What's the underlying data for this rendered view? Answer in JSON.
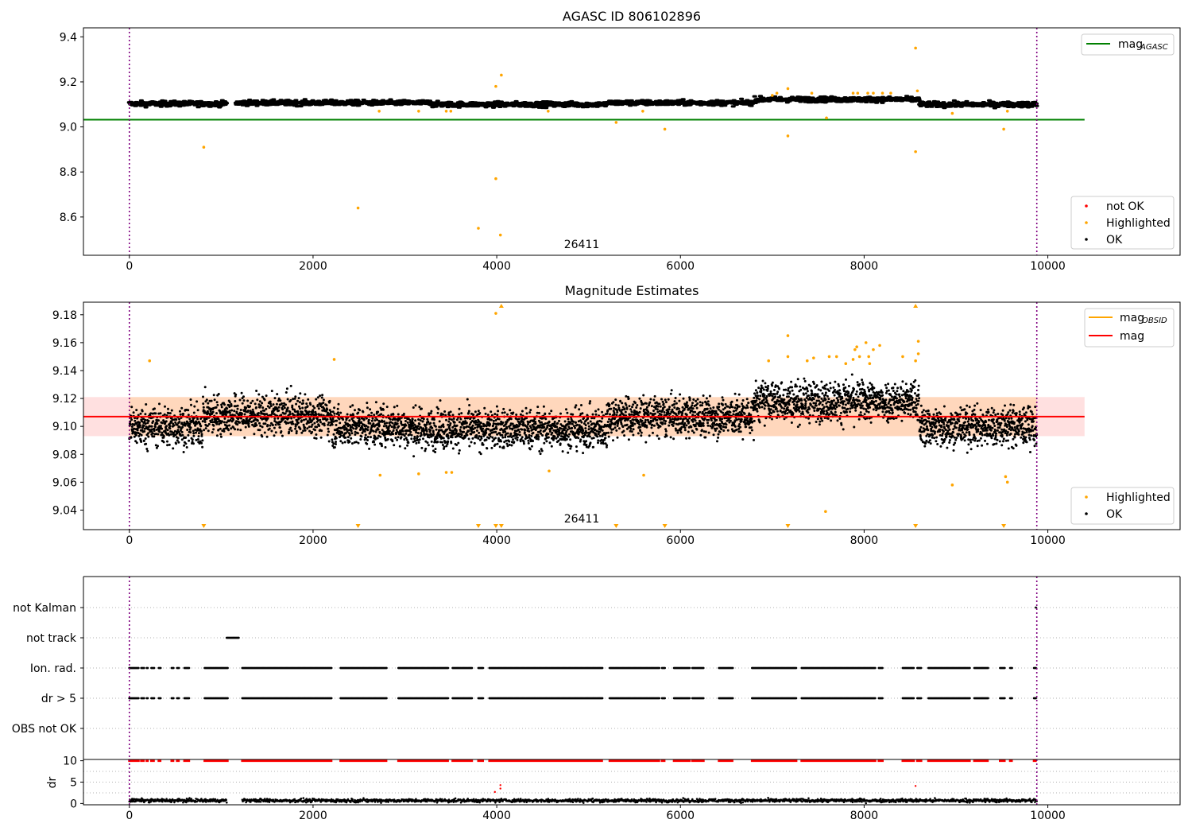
{
  "figure": {
    "panel1_title": "AGASC ID 806102896",
    "panel2_title": "Magnitude Estimates",
    "obsid_label": "26411"
  },
  "chart_data": [
    {
      "type": "scatter",
      "title": "AGASC ID 806102896",
      "xlim": [
        -500,
        11440
      ],
      "ylim": [
        8.43,
        9.44
      ],
      "x_ticks": [
        0,
        2000,
        4000,
        6000,
        8000,
        10000
      ],
      "y_ticks": [
        8.6,
        8.8,
        9.0,
        9.2,
        9.4
      ],
      "grid": false,
      "obsid_boundaries": [
        0,
        9880
      ],
      "annotation": "26411",
      "legend_lines": {
        "placement": "top-right",
        "entries": [
          {
            "label": "mag",
            "sub": "AGASC",
            "color": "#008000"
          }
        ]
      },
      "legend_points": {
        "placement": "bottom-right",
        "entries": [
          {
            "label": "not OK",
            "color": "#ff0000"
          },
          {
            "label": "Highlighted",
            "color": "#ffa500"
          },
          {
            "label": "OK",
            "color": "#000000"
          }
        ]
      },
      "mag_agasc": {
        "value": 9.032,
        "x_range": [
          -500,
          10400
        ]
      },
      "ok_band": {
        "x_range": [
          0,
          9880
        ],
        "ranges": [
          [
            0,
            1060,
            9.103
          ],
          [
            1160,
            3300,
            9.107
          ],
          [
            3300,
            5200,
            9.1
          ],
          [
            5200,
            6800,
            9.107
          ],
          [
            6800,
            8600,
            9.122
          ],
          [
            8600,
            9880,
            9.1
          ]
        ],
        "gap": [
          1060,
          1160
        ],
        "spread": 0.012
      },
      "highlighted": [
        {
          "x": 810,
          "y": 8.91
        },
        {
          "x": 2490,
          "y": 8.64
        },
        {
          "x": 2720,
          "y": 9.07
        },
        {
          "x": 3150,
          "y": 9.07
        },
        {
          "x": 3450,
          "y": 9.07
        },
        {
          "x": 3500,
          "y": 9.07
        },
        {
          "x": 3800,
          "y": 8.55
        },
        {
          "x": 3990,
          "y": 9.18
        },
        {
          "x": 3990,
          "y": 8.77
        },
        {
          "x": 4040,
          "y": 8.52
        },
        {
          "x": 4050,
          "y": 9.23
        },
        {
          "x": 4560,
          "y": 9.07
        },
        {
          "x": 5300,
          "y": 9.02
        },
        {
          "x": 5590,
          "y": 9.07
        },
        {
          "x": 5830,
          "y": 8.99
        },
        {
          "x": 7000,
          "y": 9.14
        },
        {
          "x": 7050,
          "y": 9.15
        },
        {
          "x": 7170,
          "y": 9.17
        },
        {
          "x": 7170,
          "y": 8.96
        },
        {
          "x": 7430,
          "y": 9.15
        },
        {
          "x": 7590,
          "y": 9.04
        },
        {
          "x": 7880,
          "y": 9.15
        },
        {
          "x": 7930,
          "y": 9.15
        },
        {
          "x": 8040,
          "y": 9.15
        },
        {
          "x": 8100,
          "y": 9.15
        },
        {
          "x": 8200,
          "y": 9.15
        },
        {
          "x": 8290,
          "y": 9.15
        },
        {
          "x": 8560,
          "y": 9.35
        },
        {
          "x": 8560,
          "y": 8.89
        },
        {
          "x": 8580,
          "y": 9.16
        },
        {
          "x": 8960,
          "y": 9.06
        },
        {
          "x": 9520,
          "y": 8.99
        },
        {
          "x": 9560,
          "y": 9.07
        }
      ]
    },
    {
      "type": "scatter",
      "title": "Magnitude Estimates",
      "xlim": [
        -500,
        11440
      ],
      "ylim": [
        9.026,
        9.189
      ],
      "x_ticks": [
        0,
        2000,
        4000,
        6000,
        8000,
        10000
      ],
      "y_ticks": [
        9.04,
        9.06,
        9.08,
        9.1,
        9.12,
        9.14,
        9.16,
        9.18
      ],
      "grid": false,
      "obsid_boundaries": [
        0,
        9880
      ],
      "annotation": "26411",
      "legend_lines": {
        "placement": "top-right",
        "entries": [
          {
            "label": "mag",
            "sub": "OBSID",
            "color": "#ffa500"
          },
          {
            "label": "mag",
            "sub": "",
            "color": "#ff0000"
          }
        ]
      },
      "legend_points": {
        "placement": "bottom-right",
        "entries": [
          {
            "label": "Highlighted",
            "color": "#ffa500"
          },
          {
            "label": "OK",
            "color": "#000000"
          }
        ]
      },
      "mag": {
        "value": 9.107,
        "x_range": [
          -500,
          10400
        ]
      },
      "mag_band": {
        "low": 9.093,
        "high": 9.121,
        "x_range": [
          -500,
          10400
        ]
      },
      "obsid_band": {
        "low": 9.093,
        "high": 9.121,
        "x_range": [
          0,
          9880
        ]
      },
      "ok_band": {
        "x_range": [
          0,
          9880
        ],
        "ranges": [
          [
            0,
            800,
            9.1
          ],
          [
            800,
            2200,
            9.108
          ],
          [
            2200,
            3000,
            9.1
          ],
          [
            3000,
            5200,
            9.098
          ],
          [
            5200,
            6800,
            9.107
          ],
          [
            6800,
            8600,
            9.118
          ],
          [
            8600,
            9880,
            9.1
          ]
        ],
        "spread": 0.014
      },
      "highlighted": [
        {
          "x": 220,
          "y": 9.147
        },
        {
          "x": 2230,
          "y": 9.148
        },
        {
          "x": 2730,
          "y": 9.065
        },
        {
          "x": 3150,
          "y": 9.066
        },
        {
          "x": 3450,
          "y": 9.067
        },
        {
          "x": 3510,
          "y": 9.067
        },
        {
          "x": 3990,
          "y": 9.181
        },
        {
          "x": 4570,
          "y": 9.068
        },
        {
          "x": 5600,
          "y": 9.065
        },
        {
          "x": 6960,
          "y": 9.147
        },
        {
          "x": 7170,
          "y": 9.165
        },
        {
          "x": 7170,
          "y": 9.15
        },
        {
          "x": 7380,
          "y": 9.147
        },
        {
          "x": 7450,
          "y": 9.149
        },
        {
          "x": 7580,
          "y": 9.039
        },
        {
          "x": 7620,
          "y": 9.15
        },
        {
          "x": 7700,
          "y": 9.15
        },
        {
          "x": 7800,
          "y": 9.145
        },
        {
          "x": 7880,
          "y": 9.148
        },
        {
          "x": 7900,
          "y": 9.155
        },
        {
          "x": 7920,
          "y": 9.157
        },
        {
          "x": 7950,
          "y": 9.15
        },
        {
          "x": 8020,
          "y": 9.16
        },
        {
          "x": 8050,
          "y": 9.15
        },
        {
          "x": 8060,
          "y": 9.145
        },
        {
          "x": 8100,
          "y": 9.155
        },
        {
          "x": 8170,
          "y": 9.158
        },
        {
          "x": 8420,
          "y": 9.15
        },
        {
          "x": 8560,
          "y": 9.147
        },
        {
          "x": 8590,
          "y": 9.161
        },
        {
          "x": 8590,
          "y": 9.152
        },
        {
          "x": 8960,
          "y": 9.058
        },
        {
          "x": 9540,
          "y": 9.064
        },
        {
          "x": 9560,
          "y": 9.06
        }
      ],
      "markers_top": [
        4050,
        8560
      ],
      "markers_bottom": [
        810,
        2490,
        3800,
        3990,
        4050,
        5300,
        5830,
        7170,
        8560,
        9520
      ]
    },
    {
      "type": "scatter",
      "title": "",
      "xlim": [
        -500,
        11440
      ],
      "categories": [
        "not Kalman",
        "not track",
        "Ion. rad.",
        "dr > 5",
        "OBS not OK"
      ],
      "grid": true,
      "obsid_boundaries": [
        0,
        9880
      ],
      "not_kalman": [
        9870,
        9880
      ],
      "not_track": [
        [
          1060,
          1190
        ]
      ],
      "ion_rad_segments": [
        [
          0,
          50
        ],
        [
          60,
          100
        ],
        [
          130,
          160
        ],
        [
          190,
          200
        ],
        [
          240,
          270
        ],
        [
          320,
          340
        ],
        [
          460,
          480
        ],
        [
          520,
          540
        ],
        [
          600,
          650
        ],
        [
          820,
          1070
        ],
        [
          1230,
          2200
        ],
        [
          2300,
          2800
        ],
        [
          2930,
          3470
        ],
        [
          3520,
          3730
        ],
        [
          3800,
          3850
        ],
        [
          3920,
          5150
        ],
        [
          5230,
          5770
        ],
        [
          5800,
          5830
        ],
        [
          5930,
          6100
        ],
        [
          6130,
          6250
        ],
        [
          6420,
          6570
        ],
        [
          6780,
          7260
        ],
        [
          7320,
          8120
        ],
        [
          8160,
          8200
        ],
        [
          8420,
          8540
        ],
        [
          8580,
          8620
        ],
        [
          8700,
          9150
        ],
        [
          9200,
          9350
        ],
        [
          9480,
          9530
        ],
        [
          9590,
          9610
        ],
        [
          9850,
          9870
        ]
      ],
      "dr_gt5_segments": [
        [
          0,
          50
        ],
        [
          60,
          100
        ],
        [
          130,
          160
        ],
        [
          190,
          200
        ],
        [
          240,
          270
        ],
        [
          320,
          340
        ],
        [
          460,
          480
        ],
        [
          520,
          540
        ],
        [
          600,
          650
        ],
        [
          820,
          1070
        ],
        [
          1230,
          2200
        ],
        [
          2300,
          2800
        ],
        [
          2930,
          3470
        ],
        [
          3520,
          3730
        ],
        [
          3800,
          3850
        ],
        [
          3920,
          5150
        ],
        [
          5230,
          5770
        ],
        [
          5800,
          5830
        ],
        [
          5930,
          6100
        ],
        [
          6130,
          6250
        ],
        [
          6420,
          6570
        ],
        [
          6780,
          7260
        ],
        [
          7320,
          8120
        ],
        [
          8160,
          8200
        ],
        [
          8420,
          8540
        ],
        [
          8580,
          8620
        ],
        [
          8700,
          9150
        ],
        [
          9200,
          9350
        ],
        [
          9480,
          9530
        ],
        [
          9590,
          9610
        ],
        [
          9850,
          9870
        ]
      ]
    },
    {
      "type": "scatter",
      "title": "",
      "ylabel": "dr",
      "xlim": [
        -500,
        11440
      ],
      "ylim": [
        -0.3,
        10.3
      ],
      "x_ticks": [
        0,
        2000,
        4000,
        6000,
        8000,
        10000
      ],
      "y_ticks": [
        0,
        5,
        10
      ],
      "grid": true,
      "obsid_boundaries": [
        0,
        9880
      ],
      "clipped_segments": [
        [
          0,
          50
        ],
        [
          60,
          100
        ],
        [
          130,
          160
        ],
        [
          190,
          200
        ],
        [
          240,
          270
        ],
        [
          320,
          340
        ],
        [
          460,
          480
        ],
        [
          520,
          540
        ],
        [
          600,
          650
        ],
        [
          820,
          1070
        ],
        [
          1230,
          2200
        ],
        [
          2300,
          2800
        ],
        [
          2930,
          3470
        ],
        [
          3520,
          3730
        ],
        [
          3800,
          3850
        ],
        [
          3920,
          5150
        ],
        [
          5230,
          5770
        ],
        [
          5800,
          5830
        ],
        [
          5930,
          6100
        ],
        [
          6130,
          6250
        ],
        [
          6420,
          6570
        ],
        [
          6780,
          7260
        ],
        [
          7320,
          8120
        ],
        [
          8160,
          8200
        ],
        [
          8420,
          8540
        ],
        [
          8580,
          8620
        ],
        [
          8700,
          9150
        ],
        [
          9200,
          9350
        ],
        [
          9480,
          9530
        ],
        [
          9590,
          9610
        ],
        [
          9850,
          9870
        ]
      ],
      "clipped_value": 10,
      "clipped_color": "#ff0000",
      "red_points": [
        {
          "x": 3980,
          "y": 2.7
        },
        {
          "x": 4040,
          "y": 3.5
        },
        {
          "x": 4040,
          "y": 4.3
        },
        {
          "x": 8560,
          "y": 4.1
        }
      ],
      "baseline": {
        "mean": 0.7,
        "spread": 0.4,
        "gap": [
          1060,
          1230
        ]
      }
    }
  ]
}
